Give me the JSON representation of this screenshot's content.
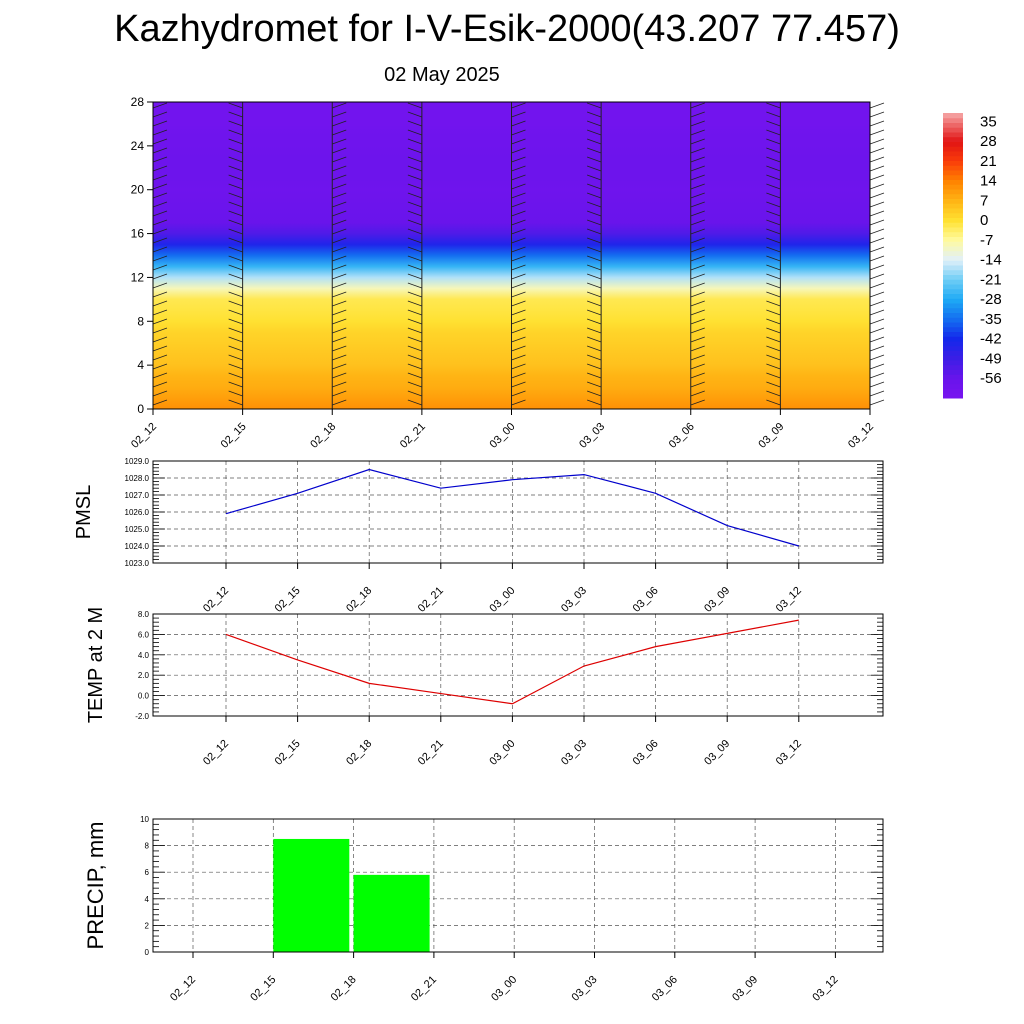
{
  "title": "Kazhydromet for I-V-Esik-2000(43.207 77.457)",
  "subtitle": "02 May 2025",
  "colors": {
    "pmsl_line": "#0000cc",
    "temp_line": "#dd0000",
    "precip_bar": "#00ff00",
    "grid": "#555555"
  },
  "chart_data": [
    {
      "type": "heatmap",
      "name": "upper-air-section",
      "x": [
        "02_12",
        "02_15",
        "02_18",
        "02_21",
        "03_00",
        "03_03",
        "03_06",
        "03_09",
        "03_12"
      ],
      "y_ticks": [
        0,
        4,
        8,
        12,
        16,
        20,
        24,
        28
      ],
      "ylim": [
        0,
        28
      ],
      "levels": [
        0,
        1,
        2,
        3,
        4,
        5,
        6,
        7,
        8,
        9,
        10,
        11,
        12,
        13,
        14,
        15,
        16,
        17,
        18,
        19,
        20,
        21,
        22,
        23,
        24,
        25,
        26,
        27,
        28
      ],
      "temperature_profile": [
        12,
        10,
        8,
        7,
        5,
        4,
        3,
        2,
        0,
        -1,
        -2,
        -9,
        -17,
        -26,
        -35,
        -44,
        -52,
        -56,
        -57,
        -58,
        -59,
        -58,
        -58,
        -58,
        -59,
        -59,
        -60,
        -60,
        -60
      ],
      "colorbar": {
        "labels": [
          "35",
          "28",
          "21",
          "14",
          "7",
          "0",
          "-7",
          "-14",
          "-21",
          "-28",
          "-35",
          "-42",
          "-49",
          "-56"
        ],
        "values": [
          35,
          28,
          21,
          14,
          7,
          0,
          -7,
          -14,
          -21,
          -28,
          -35,
          -42,
          -49,
          -56
        ],
        "range": [
          -63,
          38
        ]
      },
      "wind_barbs": true
    },
    {
      "type": "line",
      "name": "pmsl",
      "ylabel": "PMSL",
      "x": [
        "02_12",
        "02_15",
        "02_18",
        "02_21",
        "03_00",
        "03_03",
        "03_06",
        "03_09",
        "03_12"
      ],
      "values": [
        1025.9,
        1027.1,
        1028.5,
        1027.4,
        1027.9,
        1028.2,
        1027.1,
        1025.2,
        1024.0
      ],
      "ylim": [
        1023.0,
        1029.0
      ],
      "y_ticks": [
        "1023.0",
        "1024.0",
        "1025.0",
        "1026.0",
        "1027.0",
        "1028.0",
        "1029.0"
      ],
      "grid": true
    },
    {
      "type": "line",
      "name": "temp-2m",
      "ylabel": "TEMP at 2 M",
      "x": [
        "02_12",
        "02_15",
        "02_18",
        "02_21",
        "03_00",
        "03_03",
        "03_06",
        "03_09",
        "03_12"
      ],
      "values": [
        6.0,
        3.5,
        1.2,
        0.2,
        -0.8,
        2.9,
        4.8,
        6.1,
        7.4
      ],
      "ylim": [
        -2.0,
        8.0
      ],
      "y_ticks": [
        "-2.0",
        "0.0",
        "2.0",
        "4.0",
        "6.0",
        "8.0"
      ],
      "grid": true
    },
    {
      "type": "bar",
      "name": "precip",
      "ylabel": "PRECIP, mm",
      "categories": [
        "02_12",
        "02_15",
        "02_18",
        "02_21",
        "03_00",
        "03_03",
        "03_06",
        "03_09",
        "03_12"
      ],
      "values": [
        0,
        8.5,
        5.8,
        0,
        0,
        0,
        0,
        0,
        0
      ],
      "ylim": [
        0,
        10
      ],
      "y_ticks": [
        "0",
        "2",
        "4",
        "6",
        "8",
        "10"
      ],
      "grid": true
    }
  ]
}
